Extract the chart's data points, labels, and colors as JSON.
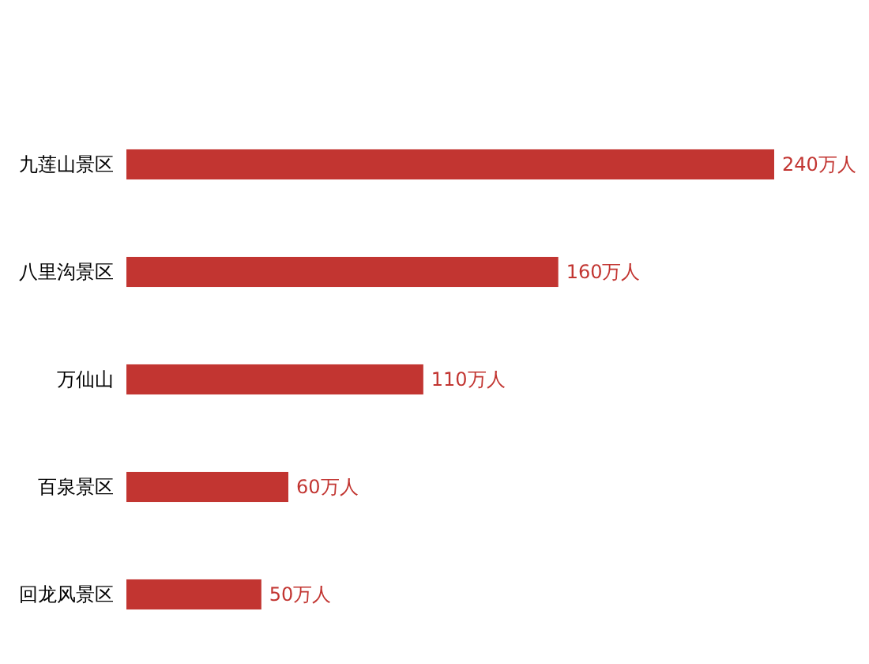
{
  "chart_data": {
    "type": "bar",
    "orientation": "horizontal",
    "categories": [
      "九莲山景区",
      "八里沟景区",
      "万仙山",
      "百泉景区",
      "回龙风景区"
    ],
    "values": [
      240,
      160,
      110,
      60,
      50
    ],
    "value_labels": [
      "240万人",
      "160万人",
      "110万人",
      "60万人",
      "50万人"
    ],
    "color": "#c23531"
  }
}
